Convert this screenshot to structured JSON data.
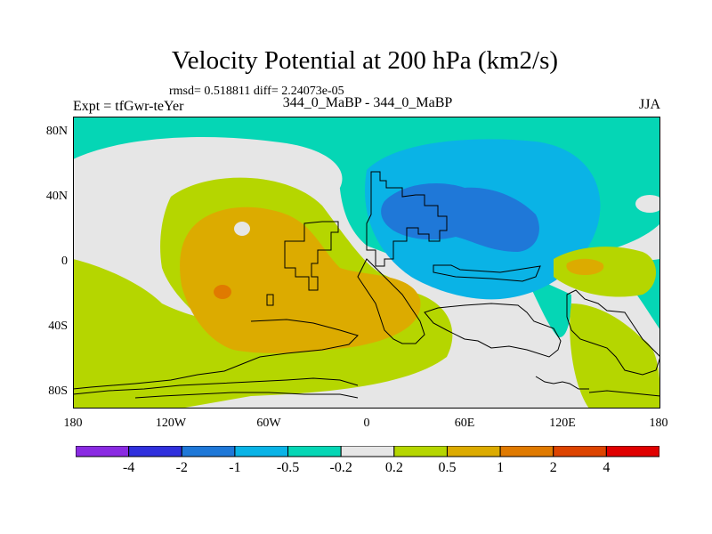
{
  "title": "Velocity Potential at 200 hPa (km2/s)",
  "stats": "rmsd= 0.518811 diff= 2.24073e-05",
  "experiment": "Expt = tfGwr-teYer",
  "subtitle": "344_0_MaBP - 344_0_MaBP",
  "season": "JJA",
  "map": {
    "lat_labels": [
      "80N",
      "40N",
      "0",
      "40S",
      "80S"
    ],
    "lon_labels": [
      "180",
      "120W",
      "60W",
      "0",
      "60E",
      "120E",
      "180"
    ]
  },
  "colorbar": {
    "colors": [
      "#8a2be2",
      "#3030dd",
      "#1f78d8",
      "#0ab3e6",
      "#05d6b5",
      "#e6e6e6",
      "#b5d600",
      "#dcab00",
      "#e07a00",
      "#dd4400",
      "#e00000"
    ],
    "labels": [
      "-4",
      "-2",
      "-1",
      "-0.5",
      "-0.2",
      "0.2",
      "0.5",
      "1",
      "2",
      "4"
    ]
  }
}
